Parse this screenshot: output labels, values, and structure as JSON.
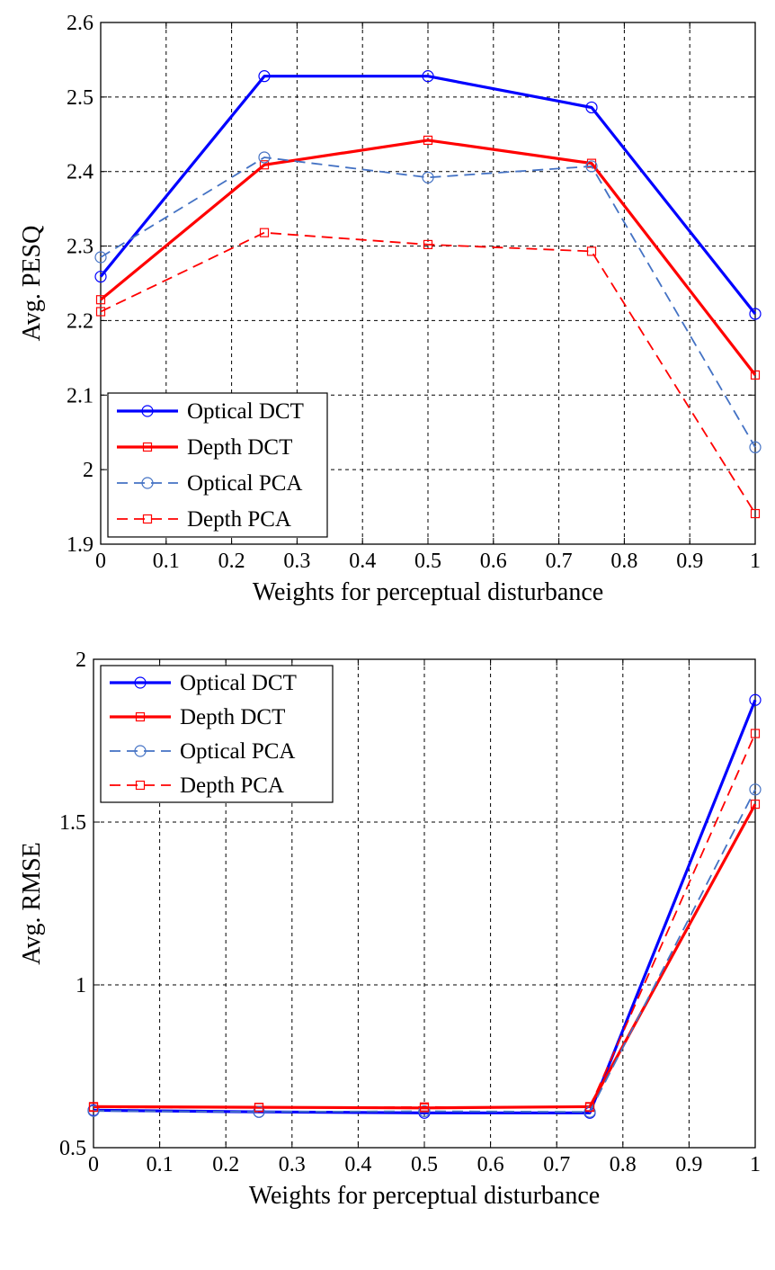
{
  "chart_data": [
    {
      "type": "line",
      "xlabel": "Weights for perceptual disturbance",
      "ylabel": "Avg. PESQ",
      "xlim": [
        0,
        1
      ],
      "ylim": [
        1.9,
        2.6
      ],
      "xticks": [
        0,
        0.1,
        0.2,
        0.3,
        0.4,
        0.5,
        0.6,
        0.7,
        0.8,
        0.9,
        1
      ],
      "xtick_labels": [
        "0",
        "0.1",
        "0.2",
        "0.3",
        "0.4",
        "0.5",
        "0.6",
        "0.7",
        "0.8",
        "0.9",
        "1"
      ],
      "yticks": [
        1.9,
        2.0,
        2.1,
        2.2,
        2.3,
        2.4,
        2.5,
        2.6
      ],
      "ytick_labels": [
        "1.9",
        "2",
        "2.1",
        "2.2",
        "2.3",
        "2.4",
        "2.5",
        "2.6"
      ],
      "grid": true,
      "legend_position": "bottom-left",
      "x": [
        0,
        0.25,
        0.5,
        0.75,
        1
      ],
      "series": [
        {
          "name": "Optical DCT",
          "values": [
            2.259,
            2.528,
            2.528,
            2.486,
            2.209
          ],
          "color": "#0000ff",
          "dash": "solid",
          "marker": "circle",
          "weight": "thick"
        },
        {
          "name": "Depth DCT",
          "values": [
            2.228,
            2.409,
            2.442,
            2.411,
            2.127
          ],
          "color": "#ff0000",
          "dash": "solid",
          "marker": "square",
          "weight": "thick"
        },
        {
          "name": "Optical PCA",
          "values": [
            2.285,
            2.419,
            2.392,
            2.407,
            2.03
          ],
          "color": "#4472c4",
          "dash": "dashed",
          "marker": "circle",
          "weight": "thin"
        },
        {
          "name": "Depth PCA",
          "values": [
            2.212,
            2.318,
            2.302,
            2.293,
            1.941
          ],
          "color": "#ff0000",
          "dash": "dashed",
          "marker": "square",
          "weight": "thin"
        }
      ]
    },
    {
      "type": "line",
      "xlabel": "Weights for perceptual disturbance",
      "ylabel": "Avg. RMSE",
      "xlim": [
        0,
        1
      ],
      "ylim": [
        0.5,
        2
      ],
      "xticks": [
        0,
        0.1,
        0.2,
        0.3,
        0.4,
        0.5,
        0.6,
        0.7,
        0.8,
        0.9,
        1
      ],
      "xtick_labels": [
        "0",
        "0.1",
        "0.2",
        "0.3",
        "0.4",
        "0.5",
        "0.6",
        "0.7",
        "0.8",
        "0.9",
        "1"
      ],
      "yticks": [
        0.5,
        1.0,
        1.5,
        2.0
      ],
      "ytick_labels": [
        "0.5",
        "1",
        "1.5",
        "2"
      ],
      "grid": true,
      "legend_position": "top-left",
      "x": [
        0,
        0.25,
        0.5,
        0.75,
        1
      ],
      "series": [
        {
          "name": "Optical DCT",
          "values": [
            0.615,
            0.61,
            0.607,
            0.607,
            1.875
          ],
          "color": "#0000ff",
          "dash": "solid",
          "marker": "circle",
          "weight": "thick"
        },
        {
          "name": "Depth DCT",
          "values": [
            0.626,
            0.624,
            0.622,
            0.626,
            1.555
          ],
          "color": "#ff0000",
          "dash": "solid",
          "marker": "square",
          "weight": "thick"
        },
        {
          "name": "Optical PCA",
          "values": [
            0.613,
            0.61,
            0.612,
            0.61,
            1.6
          ],
          "color": "#4472c4",
          "dash": "dashed",
          "marker": "circle",
          "weight": "thin"
        },
        {
          "name": "Depth PCA",
          "values": [
            0.624,
            0.623,
            0.625,
            0.624,
            1.772
          ],
          "color": "#ff0000",
          "dash": "dashed",
          "marker": "square",
          "weight": "thin"
        }
      ]
    }
  ]
}
